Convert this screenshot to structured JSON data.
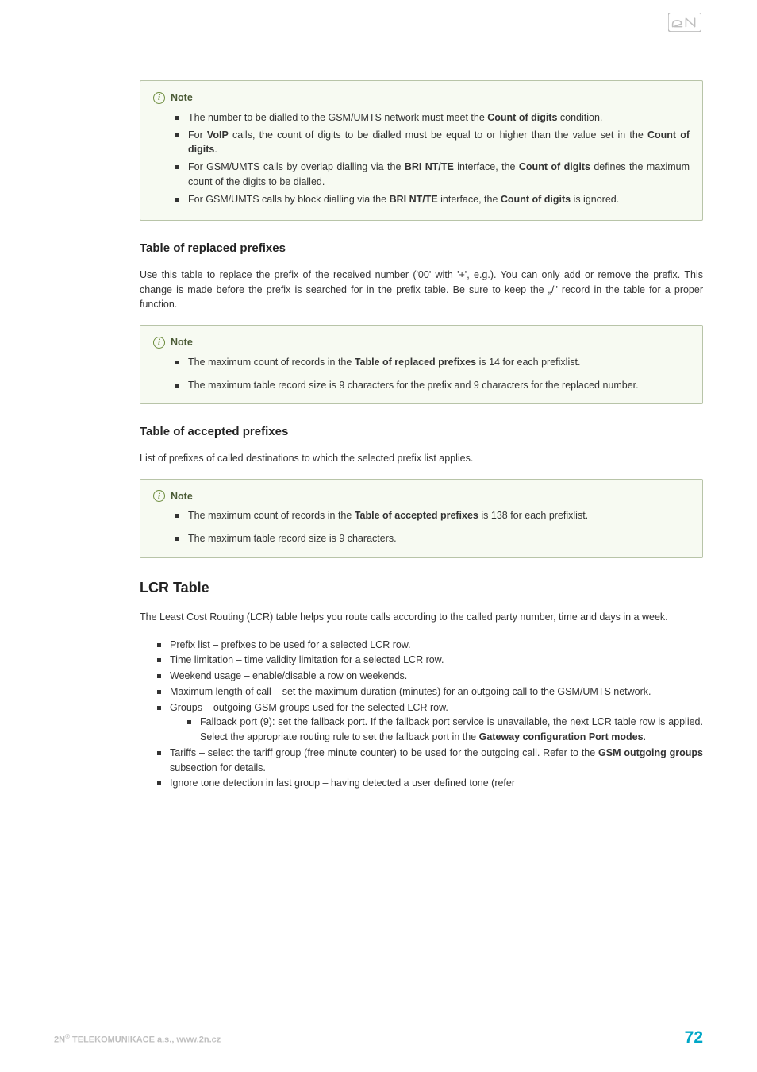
{
  "colors": {
    "text": "#333333",
    "note_border": "#b8c4a8",
    "note_bg": "#f7faf2",
    "note_title": "#4a5a35",
    "info_icon": "#6a8a3a",
    "footer_grey": "#bfbfbf",
    "footer_accent": "#00a7c7",
    "rule": "#cccccc",
    "logo": "#bfbfbf"
  },
  "note1": {
    "title": "Note",
    "items": [
      "The number to be dialled to the GSM/UMTS network must meet the <b>Count of digits</b> condition.",
      "For <b>VoIP</b> calls, the count of digits to be dialled must be equal to or higher than the value set in the <b>Count of digits</b>.",
      "For GSM/UMTS calls by overlap dialling via the <b>BRI NT/TE</b> interface, the <b>Count of digits</b> defines the maximum count of the digits to be dialled.",
      "For GSM/UMTS calls by block dialling via the <b>BRI NT/TE</b> interface, the <b>Count of digits</b> is ignored."
    ]
  },
  "section1": {
    "heading": "Table of replaced prefixes",
    "para": "Use this table to replace the prefix of the received number ('00' with '+', e.g.). You can only add or remove the prefix. This change is made before the prefix is searched for in the prefix table. Be sure to keep the „/\" record in the table for a proper function."
  },
  "note2": {
    "title": "Note",
    "items": [
      "The maximum count of records in the <b>Table of replaced prefixes</b> is 14 for each prefixlist.",
      "The maximum table record size is 9 characters for the prefix and 9 characters for the replaced number."
    ]
  },
  "section2": {
    "heading": "Table of accepted prefixes",
    "para": "List of prefixes of called destinations to which the selected prefix list applies."
  },
  "note3": {
    "title": "Note",
    "items": [
      "The maximum count of records in the <b>Table of accepted prefixes</b> is 138 for each prefixlist.",
      "The maximum table record size is 9 characters."
    ]
  },
  "lcr": {
    "heading": "LCR Table",
    "para": "The Least Cost Routing (LCR) table helps you route calls according to the called party number, time and days in a week.",
    "items": [
      "Prefix list – prefixes to be used for a selected LCR row.",
      "Time limitation – time validity limitation for a selected LCR row.",
      "Weekend usage – enable/disable a row on weekends.",
      "Maximum length of call – set the maximum duration (minutes) for an outgoing call to the GSM/UMTS network.",
      "Groups – outgoing GSM groups used for the selected LCR row.",
      "Tariffs – select the tariff group (free minute counter) to be used for the outgoing call. Refer to the <b>GSM outgoing groups</b> subsection for details.",
      "Ignore tone detection in last group – having detected a user defined tone (refer"
    ],
    "subitem": "Fallback port (9): set the fallback port. If the fallback port service is unavailable, the next LCR table row is applied. Select the appropriate routing rule to set the fallback port in the <b>Gateway configuration  Port modes</b>."
  },
  "footer": {
    "left_prefix": "2N",
    "left_sup": "®",
    "left_rest": " TELEKOMUNIKACE a.s., www.2n.cz",
    "page": "72"
  }
}
